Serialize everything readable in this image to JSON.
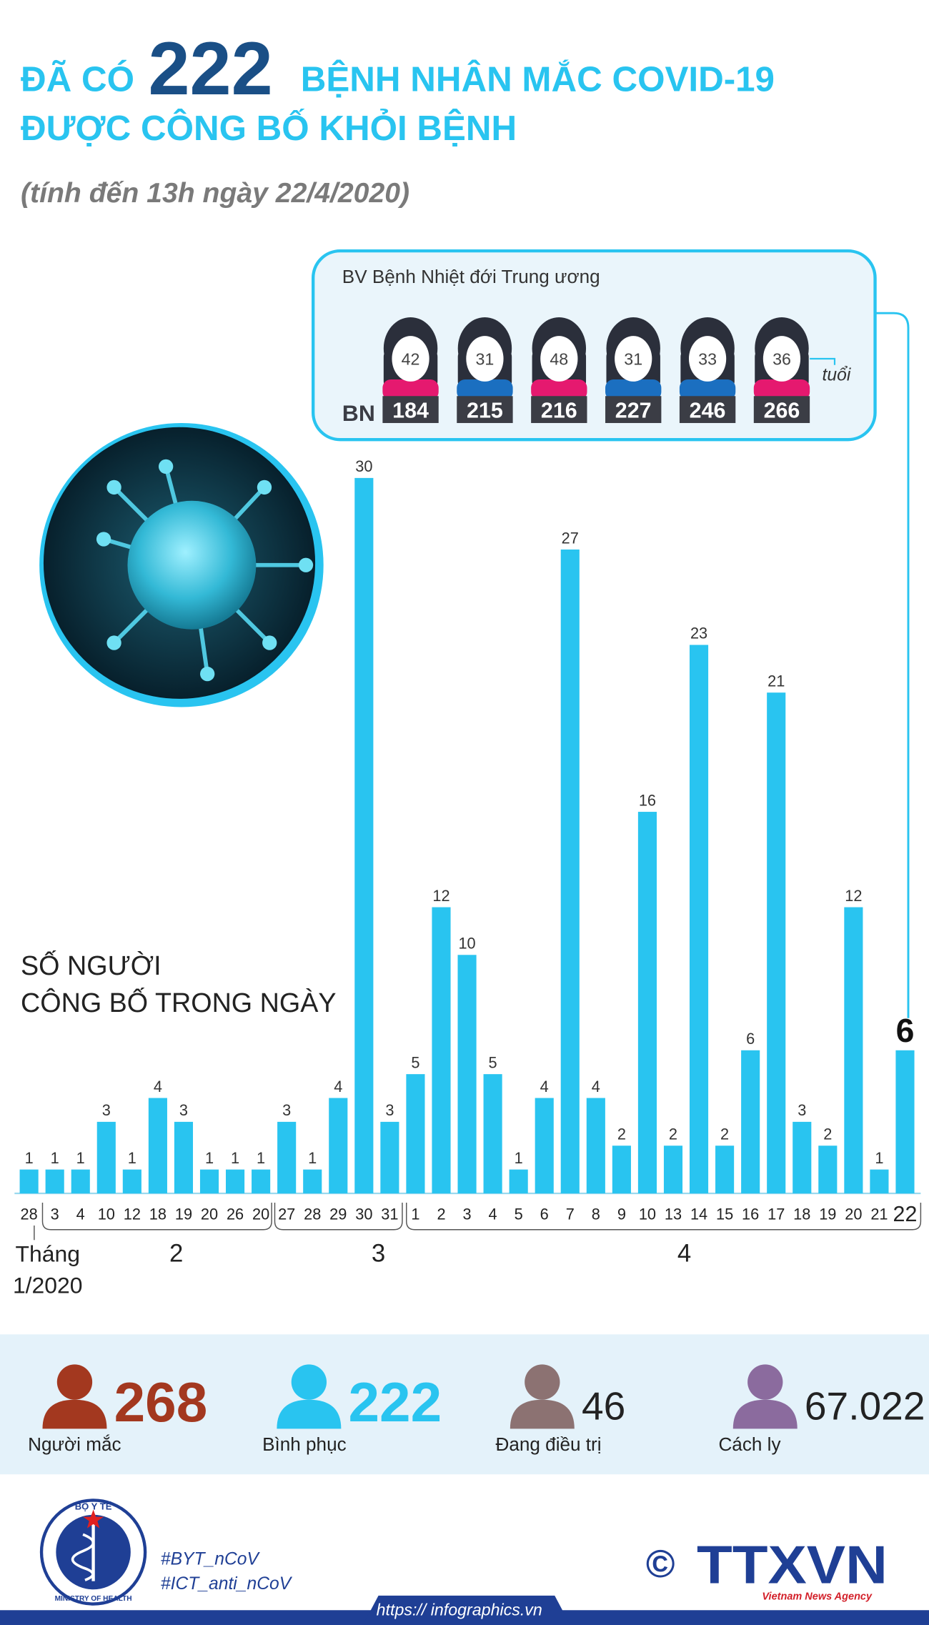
{
  "header": {
    "prefix": "ĐÃ CÓ",
    "highlight": "222",
    "suffix": "BỆNH NHÂN MẮC COVID-19",
    "line2": "ĐƯỢC CÔNG BỐ KHỎI BỆNH",
    "subtitle": "(tính đến 13h ngày 22/4/2020)"
  },
  "hospital": {
    "title": "BV Bệnh Nhiệt đới Trung ương",
    "id_label": "BN",
    "age_unit": "tuổi",
    "patients": [
      {
        "age": 42,
        "id": 184,
        "color": "#e5196f"
      },
      {
        "age": 31,
        "id": 215,
        "color": "#1b6fc0"
      },
      {
        "age": 48,
        "id": 216,
        "color": "#e5196f"
      },
      {
        "age": 31,
        "id": 227,
        "color": "#1b6fc0"
      },
      {
        "age": 33,
        "id": 246,
        "color": "#1b6fc0"
      },
      {
        "age": 36,
        "id": 266,
        "color": "#e5196f"
      }
    ]
  },
  "chart_data": {
    "type": "bar",
    "title": [
      "SỐ NGƯỜI",
      "CÔNG BỐ TRONG NGÀY"
    ],
    "categories": [
      "28",
      "3",
      "4",
      "10",
      "12",
      "18",
      "19",
      "20",
      "26",
      "20",
      "27",
      "28",
      "29",
      "30",
      "31",
      "1",
      "2",
      "3",
      "4",
      "5",
      "6",
      "7",
      "8",
      "9",
      "10",
      "13",
      "14",
      "15",
      "16",
      "17",
      "18",
      "19",
      "20",
      "21",
      "22"
    ],
    "values": [
      1,
      1,
      1,
      3,
      1,
      4,
      3,
      1,
      1,
      1,
      3,
      1,
      4,
      30,
      3,
      5,
      12,
      10,
      5,
      1,
      4,
      27,
      4,
      2,
      16,
      2,
      23,
      2,
      6,
      21,
      3,
      2,
      12,
      1,
      6
    ],
    "color": "#29c4f0",
    "month_labels": [
      [
        "Tháng",
        "1/2020"
      ],
      "2",
      "3",
      "4"
    ]
  },
  "stats": [
    {
      "value": 268,
      "label": "Người mắc",
      "color": "#a3381f"
    },
    {
      "value": 222,
      "label": "Bình phục",
      "color": "#29c4f0"
    },
    {
      "value": 46,
      "label": "Đang điều trị",
      "color": "#8c7272"
    },
    {
      "value": "67.022",
      "label": "Cách ly",
      "color": "#8b6b9e"
    }
  ],
  "footer": {
    "logo_top": "BỘ Y TẾ",
    "logo_bottom": "MINISTRY OF HEALTH",
    "hashtags": [
      "#BYT_nCoV",
      "#ICT_anti_nCoV"
    ],
    "copyright": "©",
    "agency": "TTXVN",
    "agency_sub": "Vietnam News Agency",
    "url": "https:// infographics.vn"
  }
}
